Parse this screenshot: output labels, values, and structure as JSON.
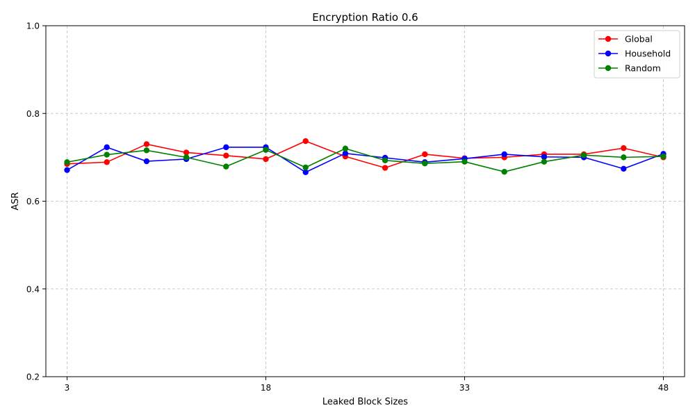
{
  "chart_data": {
    "type": "line",
    "title": "Encryption Ratio 0.6",
    "xlabel": "Leaked Block Sizes",
    "ylabel": "ASR",
    "x": [
      3,
      6,
      9,
      12,
      15,
      18,
      21,
      24,
      27,
      30,
      33,
      36,
      39,
      42,
      45,
      48
    ],
    "xticks": [
      3,
      18,
      33,
      48
    ],
    "xtick_labels": [
      "3",
      "18",
      "33",
      "48"
    ],
    "xlim": [
      1.4,
      49.6
    ],
    "ylim": [
      0.2,
      1.0
    ],
    "yticks": [
      0.2,
      0.4,
      0.6,
      0.8,
      1.0
    ],
    "ytick_labels": [
      "0.2",
      "0.4",
      "0.6",
      "0.8",
      "1.0"
    ],
    "grid": true,
    "legend_position": "top-right",
    "series": [
      {
        "name": "Global",
        "color": "#ff0000",
        "values": [
          0.685,
          0.689,
          0.73,
          0.711,
          0.704,
          0.696,
          0.737,
          0.702,
          0.676,
          0.707,
          0.698,
          0.7,
          0.707,
          0.707,
          0.721,
          0.7
        ]
      },
      {
        "name": "Household",
        "color": "#0000ff",
        "values": [
          0.671,
          0.723,
          0.691,
          0.696,
          0.723,
          0.723,
          0.666,
          0.709,
          0.699,
          0.689,
          0.697,
          0.707,
          0.701,
          0.7,
          0.674,
          0.708
        ]
      },
      {
        "name": "Random",
        "color": "#008000",
        "values": [
          0.689,
          0.706,
          0.716,
          0.7,
          0.679,
          0.717,
          0.677,
          0.72,
          0.693,
          0.686,
          0.69,
          0.667,
          0.69,
          0.705,
          0.7,
          0.702
        ]
      }
    ]
  }
}
